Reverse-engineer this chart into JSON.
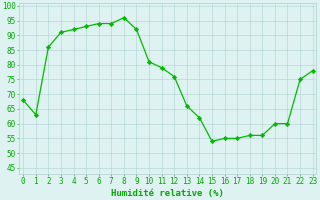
{
  "x": [
    0,
    1,
    2,
    3,
    4,
    5,
    6,
    7,
    8,
    9,
    10,
    11,
    12,
    13,
    14,
    15,
    16,
    17,
    18,
    19,
    20,
    21,
    22,
    23
  ],
  "y": [
    68,
    63,
    86,
    91,
    92,
    93,
    94,
    94,
    96,
    92,
    81,
    79,
    76,
    66,
    62,
    54,
    55,
    55,
    56,
    56,
    60,
    60,
    75,
    78
  ],
  "line_color": "#00bb00",
  "marker": "D",
  "marker_size": 2.2,
  "bg_color": "#dff2f2",
  "grid_color": "#b0d0d0",
  "xlabel": "Humidité relative (%)",
  "xlabel_color": "#00aa00",
  "ylabel_ticks": [
    45,
    50,
    55,
    60,
    65,
    70,
    75,
    80,
    85,
    90,
    95,
    100
  ],
  "ylim": [
    43,
    101
  ],
  "xlim": [
    -0.3,
    23.3
  ],
  "tick_label_color": "#00aa00",
  "xlabel_fontsize": 6.5,
  "tick_fontsize": 5.5,
  "linewidth": 0.9
}
